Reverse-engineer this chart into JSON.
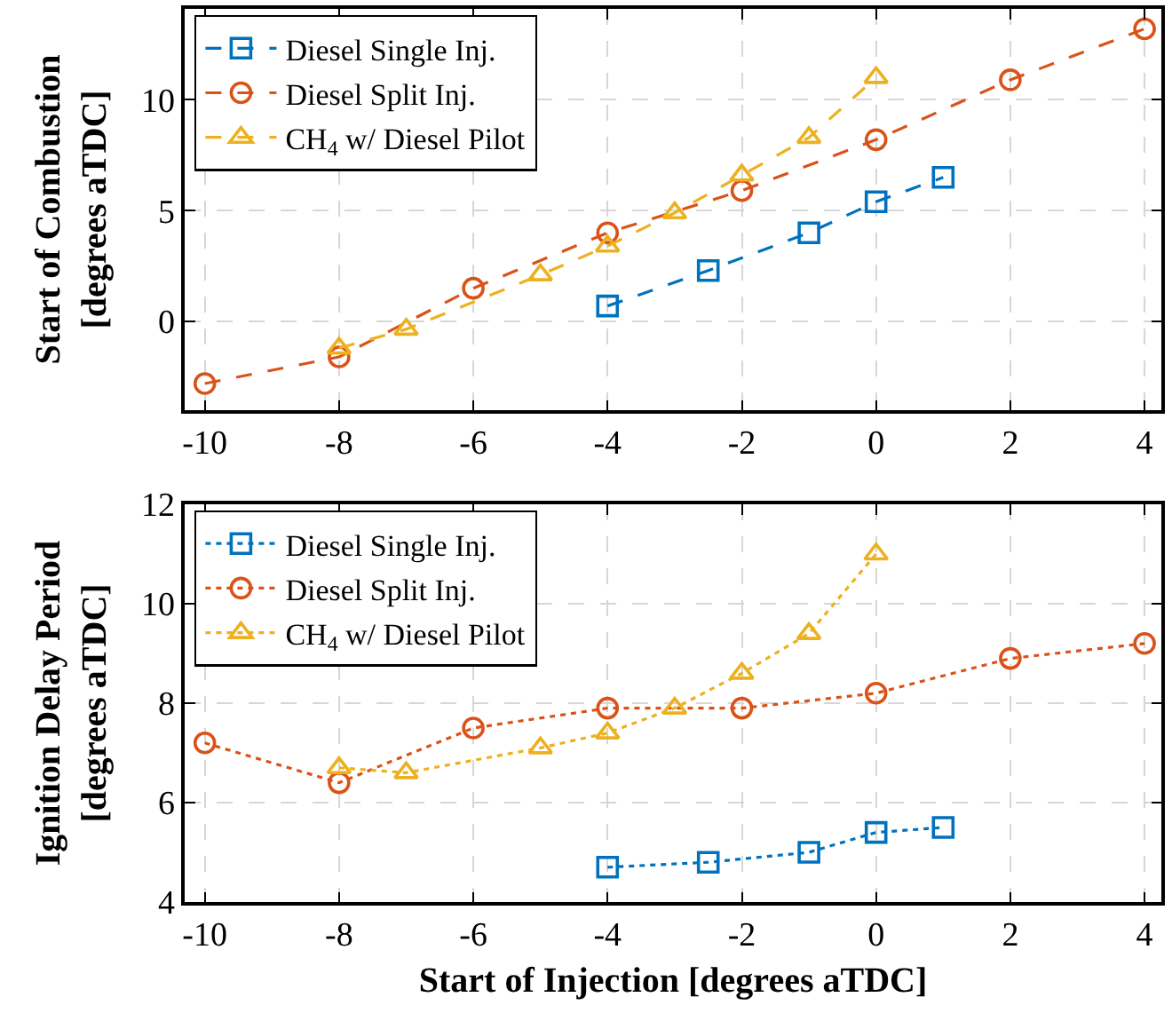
{
  "chart_data": [
    {
      "type": "line",
      "ylabel": "Start of Combustion\n[degrees aTDC]",
      "xlim": [
        -10.3,
        4.25
      ],
      "xticks": [
        {
          "value": -10,
          "label": "-10"
        },
        {
          "value": -8,
          "label": "-8"
        },
        {
          "value": -6,
          "label": "-6"
        },
        {
          "value": -4,
          "label": "-4"
        },
        {
          "value": -2,
          "label": "-2"
        },
        0,
        2,
        4
      ],
      "ylim": [
        -4,
        14.1
      ],
      "yticks": [
        0,
        5,
        10
      ],
      "grid": true,
      "legend": "top left",
      "line_style": "dashed",
      "series": [
        {
          "name": "Diesel Single Inj.",
          "color": "#0072bd",
          "marker": "square",
          "x": [
            -4,
            -2.5,
            -1,
            0,
            1
          ],
          "values": [
            0.7,
            2.3,
            4.0,
            5.4,
            6.5
          ]
        },
        {
          "name": "Diesel Split Inj.",
          "color": "#d95319",
          "marker": "circle",
          "x": [
            -10,
            -8,
            -6,
            -4,
            -2,
            0,
            2,
            4
          ],
          "values": [
            -2.8,
            -1.6,
            1.5,
            4.0,
            5.9,
            8.2,
            10.9,
            13.2
          ]
        },
        {
          "name": "CH$_{4}$ w/ Diesel Pilot",
          "color": "#edb120",
          "marker": "triangle",
          "x": [
            -8,
            -7,
            -5,
            -4,
            -3,
            -2,
            -1,
            0
          ],
          "values": [
            -1.2,
            -0.35,
            2.1,
            3.4,
            4.9,
            6.6,
            8.3,
            11.0
          ]
        }
      ]
    },
    {
      "type": "line",
      "xlabel": "Start of Injection [degrees aTDC]",
      "ylabel": "Ignition Delay Period\n[degrees aTDC]",
      "xlim": [
        -10.3,
        4.25
      ],
      "xticks": [
        {
          "value": -10,
          "label": "-10"
        },
        {
          "value": -8,
          "label": "-8"
        },
        {
          "value": -6,
          "label": "-6"
        },
        {
          "value": -4,
          "label": "-4"
        },
        {
          "value": -2,
          "label": "-2"
        },
        0,
        2,
        4
      ],
      "ylim": [
        4,
        12
      ],
      "yticks": [
        4,
        6,
        8,
        10,
        12
      ],
      "grid": true,
      "legend": "top left",
      "line_style": "dotted",
      "series": [
        {
          "name": "Diesel Single Inj.",
          "color": "#0072bd",
          "marker": "square",
          "x": [
            -4,
            -2.5,
            -1,
            0,
            1
          ],
          "values": [
            4.7,
            4.8,
            5.0,
            5.4,
            5.5
          ]
        },
        {
          "name": "Diesel Split Inj.",
          "color": "#d95319",
          "marker": "circle",
          "x": [
            -10,
            -8,
            -6,
            -4,
            -2,
            0,
            2,
            4
          ],
          "values": [
            7.2,
            6.4,
            7.5,
            7.9,
            7.9,
            8.2,
            8.9,
            9.2
          ]
        },
        {
          "name": "CH$_{4}$ w/ Diesel Pilot",
          "color": "#edb120",
          "marker": "triangle",
          "x": [
            -8,
            -7,
            -5,
            -4,
            -3,
            -2,
            -1,
            0
          ],
          "values": [
            6.7,
            6.6,
            7.1,
            7.4,
            7.9,
            8.6,
            9.4,
            11.0
          ]
        }
      ]
    }
  ]
}
